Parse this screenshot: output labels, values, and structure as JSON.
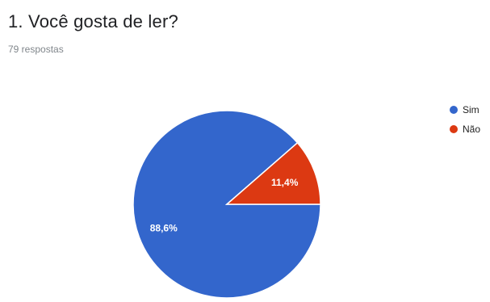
{
  "question": {
    "title": "1. Você gosta de ler?",
    "response_count": "79 respostas"
  },
  "chart_data": {
    "type": "pie",
    "categories": [
      "Sim",
      "Não"
    ],
    "values": [
      88.6,
      11.4
    ],
    "value_labels": [
      "88,6%",
      "11,4%"
    ],
    "colors": [
      "#3366cc",
      "#dc3912"
    ],
    "legend_position": "right"
  }
}
